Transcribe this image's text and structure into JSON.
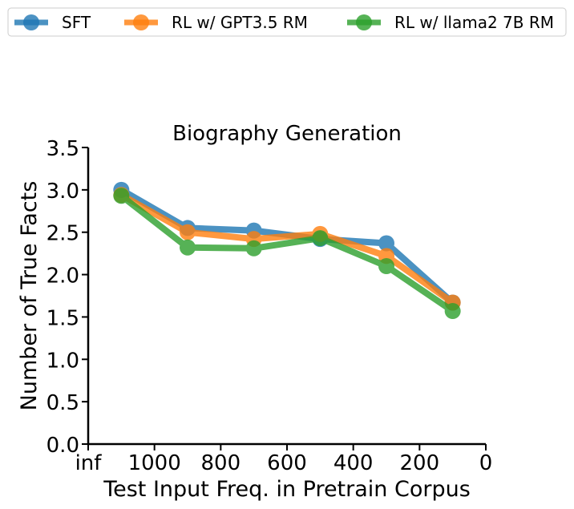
{
  "chart_data": {
    "type": "line",
    "title": "Biography Generation",
    "xlabel": "Test Input Freq. in Pretrain Corpus",
    "ylabel": "Number of True Facts",
    "xlim": [
      1200,
      0
    ],
    "ylim": [
      0,
      3.5
    ],
    "x_ticks": [
      {
        "value": 1200,
        "label": "inf"
      },
      {
        "value": 1000,
        "label": "1000"
      },
      {
        "value": 800,
        "label": "800"
      },
      {
        "value": 600,
        "label": "600"
      },
      {
        "value": 400,
        "label": "400"
      },
      {
        "value": 200,
        "label": "200"
      },
      {
        "value": 0,
        "label": "0"
      }
    ],
    "y_ticks": [
      {
        "value": 0,
        "label": "0.0"
      },
      {
        "value": 0.5,
        "label": "0.5"
      },
      {
        "value": 1,
        "label": "1.0"
      },
      {
        "value": 1.5,
        "label": "1.5"
      },
      {
        "value": 2,
        "label": "2.0"
      },
      {
        "value": 2.5,
        "label": "2.5"
      },
      {
        "value": 3,
        "label": "3.0"
      },
      {
        "value": 3.5,
        "label": "3.5"
      }
    ],
    "grid": false,
    "legend_position": "top",
    "x": [
      1100,
      900,
      700,
      500,
      300,
      100
    ],
    "series": [
      {
        "name": "SFT",
        "color": "#1f77b4",
        "values": [
          3.0,
          2.55,
          2.52,
          2.42,
          2.37,
          1.67
        ]
      },
      {
        "name": "RL w/ GPT3.5 RM",
        "color": "#ff7f0e",
        "values": [
          2.94,
          2.5,
          2.42,
          2.48,
          2.22,
          1.67
        ]
      },
      {
        "name": "RL w/ llama2 7B RM",
        "color": "#2ca02c",
        "values": [
          2.93,
          2.32,
          2.31,
          2.43,
          2.1,
          1.57
        ]
      }
    ]
  }
}
